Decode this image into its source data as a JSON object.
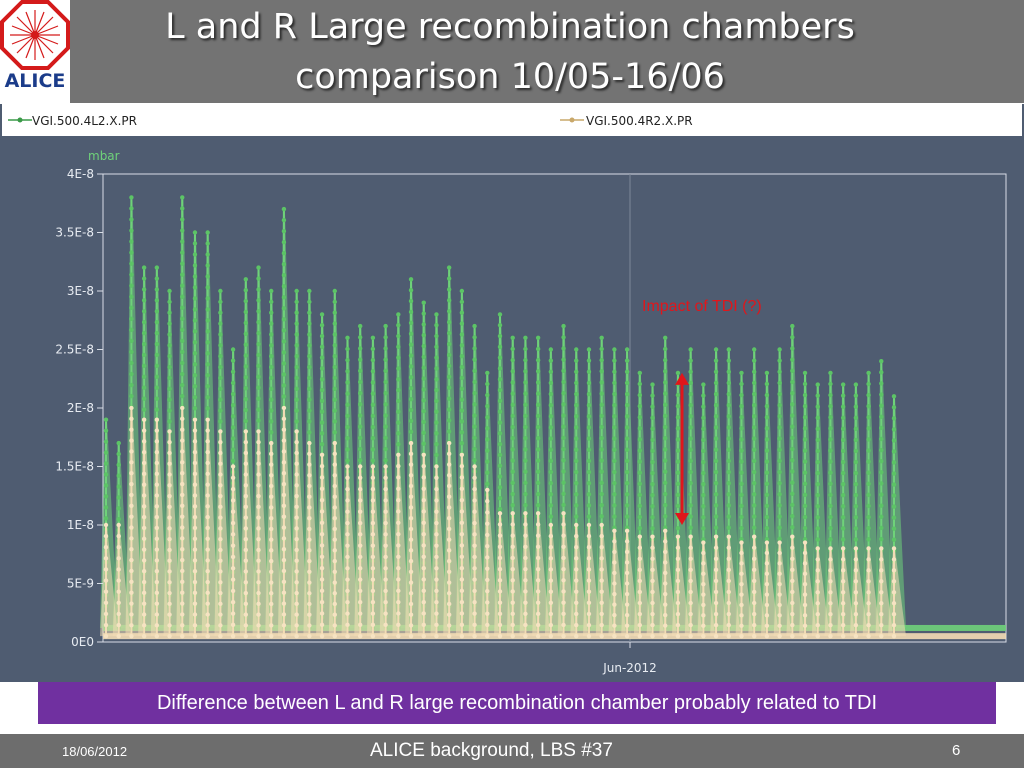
{
  "header": {
    "title": "L and R Large recombination chambers comparison  10/05-16/06",
    "logo_text": "ALICE"
  },
  "caption": "Difference between L and R large recombination chamber probably related to TDI",
  "footer": {
    "date": "18/06/2012",
    "center": "ALICE background, LBS #37",
    "page": "6"
  },
  "colors": {
    "background": "#4f5c71",
    "green_series": "#6fd27a",
    "beige_series": "#f3dcb5",
    "annotation": "#e0161b",
    "caption_bg": "#7030a0"
  },
  "chart_data": {
    "type": "line",
    "y_unit": "mbar",
    "ylim": [
      0,
      4e-08
    ],
    "y_ticks": [
      "4E-8",
      "3.5E-8",
      "3E-8",
      "2.5E-8",
      "2E-8",
      "1.5E-8",
      "1E-8",
      "5E-9",
      "0E0"
    ],
    "x_tick_labels": [
      "Jun-2012"
    ],
    "grid": true,
    "legend_position": "top",
    "annotation": {
      "text": "Impact of TDI  (?)",
      "arrow_from": 1e-08,
      "arrow_to": 2.3e-08
    },
    "series": [
      {
        "name": "VGI.500.4L2.X.PR",
        "color": "#6fd27a",
        "baseline": 1.2e-09,
        "peaks": [
          1.9e-08,
          1.7e-08,
          3.8e-08,
          3.2e-08,
          3.2e-08,
          3e-08,
          3.8e-08,
          3.5e-08,
          3.5e-08,
          3e-08,
          2.5e-08,
          3.1e-08,
          3.2e-08,
          3e-08,
          3.7e-08,
          3e-08,
          3e-08,
          2.8e-08,
          3e-08,
          2.6e-08,
          2.7e-08,
          2.6e-08,
          2.7e-08,
          2.8e-08,
          3.1e-08,
          2.9e-08,
          2.8e-08,
          3.2e-08,
          3e-08,
          2.7e-08,
          2.3e-08,
          2.8e-08,
          2.6e-08,
          2.6e-08,
          2.6e-08,
          2.5e-08,
          2.7e-08,
          2.5e-08,
          2.5e-08,
          2.6e-08,
          2.5e-08,
          2.5e-08,
          2.3e-08,
          2.2e-08,
          2.6e-08,
          2.3e-08,
          2.5e-08,
          2.2e-08,
          2.5e-08,
          2.5e-08,
          2.3e-08,
          2.5e-08,
          2.3e-08,
          2.5e-08,
          2.7e-08,
          2.3e-08,
          2.2e-08,
          2.3e-08,
          2.2e-08,
          2.2e-08,
          2.3e-08,
          2.4e-08,
          2.1e-08
        ]
      },
      {
        "name": "VGI.500.4R2.X.PR",
        "color": "#f3dcb5",
        "baseline": 5e-10,
        "peaks": [
          1e-08,
          1e-08,
          2e-08,
          1.9e-08,
          1.9e-08,
          1.8e-08,
          2e-08,
          1.9e-08,
          1.9e-08,
          1.8e-08,
          1.5e-08,
          1.8e-08,
          1.8e-08,
          1.7e-08,
          2e-08,
          1.8e-08,
          1.7e-08,
          1.6e-08,
          1.7e-08,
          1.5e-08,
          1.5e-08,
          1.5e-08,
          1.5e-08,
          1.6e-08,
          1.7e-08,
          1.6e-08,
          1.5e-08,
          1.7e-08,
          1.6e-08,
          1.5e-08,
          1.3e-08,
          1.1e-08,
          1.1e-08,
          1.1e-08,
          1.1e-08,
          1e-08,
          1.1e-08,
          1e-08,
          1e-08,
          1e-08,
          9.5e-09,
          9.5e-09,
          9e-09,
          9e-09,
          9.5e-09,
          9e-09,
          9e-09,
          8.5e-09,
          9e-09,
          9e-09,
          8.5e-09,
          9e-09,
          8.5e-09,
          8.5e-09,
          9e-09,
          8.5e-09,
          8e-09,
          8e-09,
          8e-09,
          8e-09,
          8e-09,
          8e-09,
          8e-09
        ]
      }
    ]
  }
}
